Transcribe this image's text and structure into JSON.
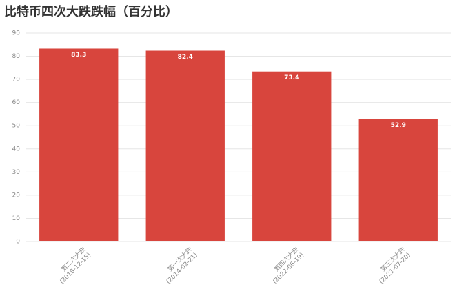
{
  "chart_data": {
    "type": "bar",
    "title": "比特币四次大跌跌幅（百分比）",
    "categories": [
      "第二次大跌\n(2018-12-15)",
      "第一次大跌\n(2014-02-21)",
      "第四次大跌\n(2022-06-19)",
      "第三次大跌\n(2021-07-20)"
    ],
    "values": [
      83.3,
      82.4,
      73.4,
      52.9
    ],
    "color": "#d8453d",
    "ylim": [
      0,
      90
    ],
    "yticks": [
      0,
      10,
      20,
      30,
      40,
      50,
      60,
      70,
      80,
      90
    ],
    "grid": true
  }
}
